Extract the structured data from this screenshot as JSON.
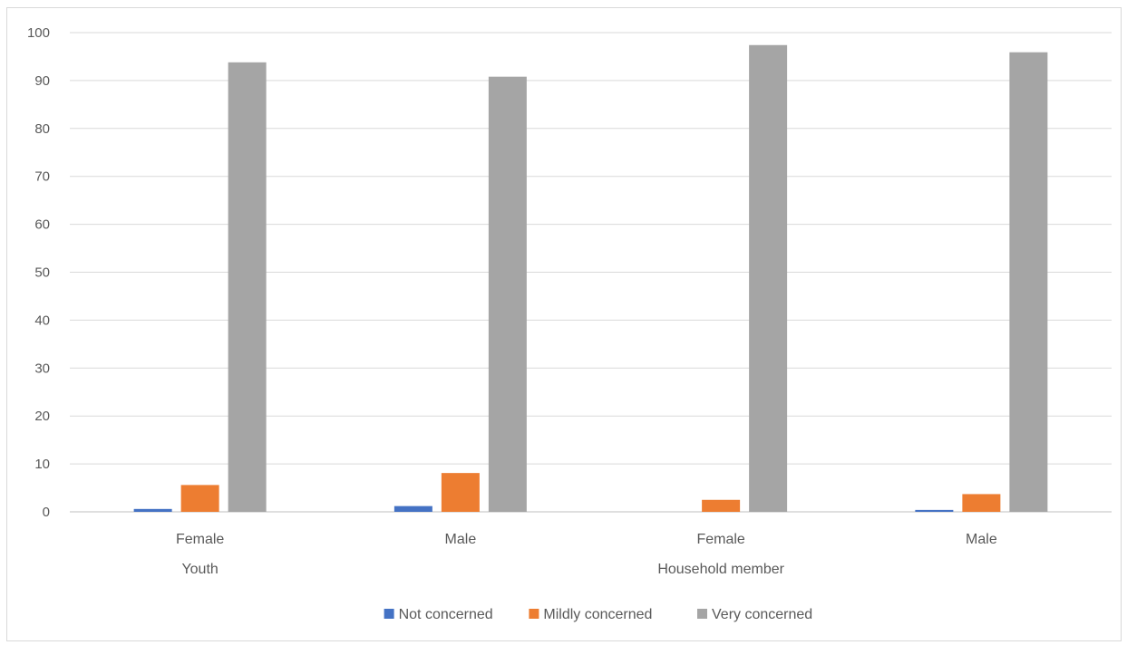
{
  "chart_data": {
    "type": "bar",
    "categories": [
      "Female",
      "Male",
      "Female",
      "Male"
    ],
    "groups": [
      {
        "label": "Youth",
        "categories": [
          "Female",
          "Male"
        ]
      },
      {
        "label": "Household member",
        "categories": [
          "Female",
          "Male"
        ]
      }
    ],
    "series": [
      {
        "name": "Not concerned",
        "values": [
          0.6,
          1.2,
          0.0,
          0.4
        ]
      },
      {
        "name": "Mildly concerned",
        "values": [
          5.6,
          8.1,
          2.5,
          3.7
        ]
      },
      {
        "name": "Very concerned",
        "values": [
          93.8,
          90.8,
          97.4,
          95.9
        ]
      }
    ],
    "colors": [
      "#4472c4",
      "#ed7d31",
      "#a5a5a5"
    ],
    "ylim": [
      0,
      100
    ],
    "yticks": [
      "0",
      "10",
      "20",
      "30",
      "40",
      "50",
      "60",
      "70",
      "80",
      "90",
      "100"
    ],
    "grid": true,
    "legend_position": "bottom"
  }
}
